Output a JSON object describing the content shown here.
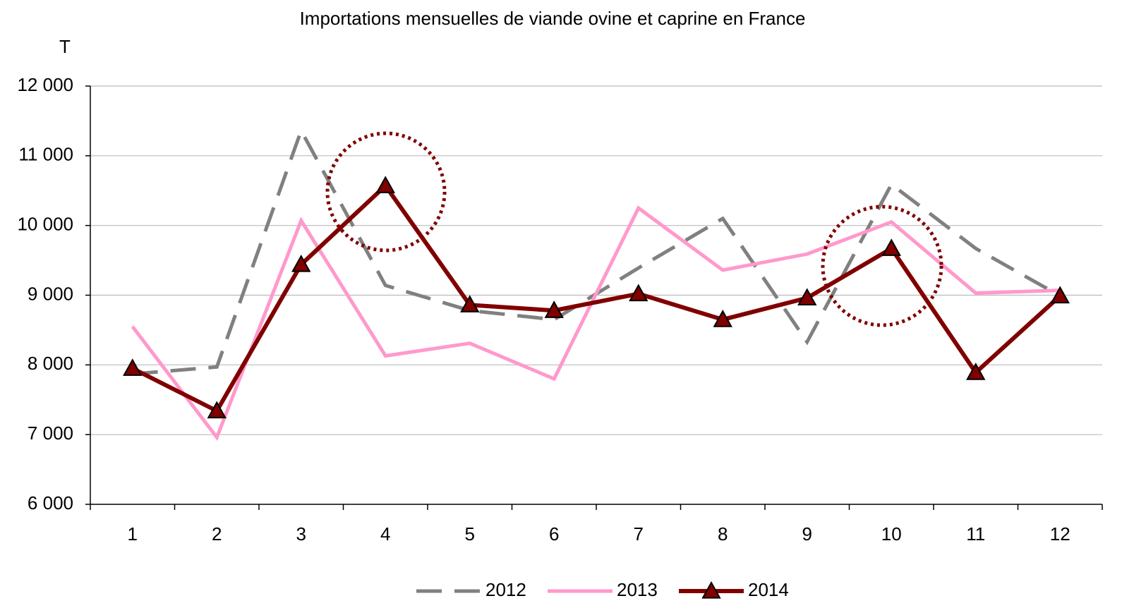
{
  "chart_data": {
    "type": "line",
    "title": "Importations mensuelles de viande ovine et caprine en France",
    "y_label": "T",
    "categories": [
      "1",
      "2",
      "3",
      "4",
      "5",
      "6",
      "7",
      "8",
      "9",
      "10",
      "11",
      "12"
    ],
    "series": [
      {
        "name": "2012",
        "color": "#808080",
        "dash": true,
        "marker": false,
        "values": [
          7870,
          7970,
          11360,
          9140,
          8780,
          8650,
          9390,
          10100,
          8330,
          10590,
          9670,
          8990
        ]
      },
      {
        "name": "2013",
        "color": "#ff99cc",
        "dash": false,
        "marker": false,
        "values": [
          8550,
          6960,
          10070,
          8130,
          8310,
          7800,
          10250,
          9360,
          9590,
          10050,
          9030,
          9070
        ]
      },
      {
        "name": "2014",
        "color": "#800000",
        "dash": false,
        "marker": true,
        "values": [
          7950,
          7340,
          9440,
          10570,
          8860,
          8780,
          9020,
          8650,
          8960,
          9670,
          7890,
          8990
        ]
      }
    ],
    "ylim": [
      6000,
      12000
    ],
    "yticks": [
      {
        "value": 6000,
        "label": "6 000"
      },
      {
        "value": 7000,
        "label": "7 000"
      },
      {
        "value": 8000,
        "label": "8 000"
      },
      {
        "value": 9000,
        "label": "9 000"
      },
      {
        "value": 10000,
        "label": "10 000"
      },
      {
        "value": 11000,
        "label": "11 000"
      },
      {
        "value": 12000,
        "label": "12 000"
      }
    ],
    "grid": true
  }
}
